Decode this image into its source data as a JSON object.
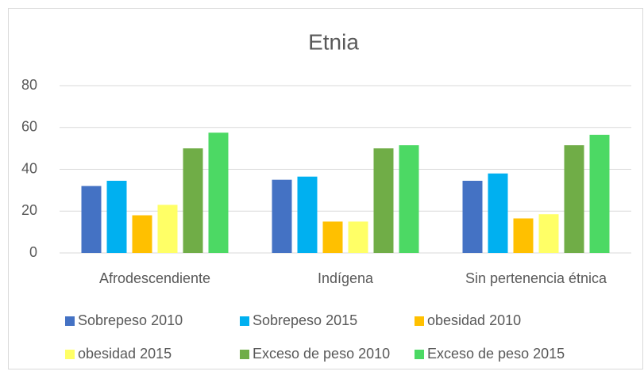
{
  "chart_data": {
    "type": "bar",
    "title": "Etnia",
    "categories": [
      "Afrodescendiente",
      "Indígena",
      "Sin pertenencia étnica"
    ],
    "series": [
      {
        "name": "Sobrepeso 2010",
        "color": "#4472c4",
        "values": [
          32,
          35,
          34.5
        ]
      },
      {
        "name": "Sobrepeso 2015",
        "color": "#00b0f0",
        "values": [
          34.5,
          36.5,
          38
        ]
      },
      {
        "name": "obesidad 2010",
        "color": "#ffc000",
        "values": [
          18,
          15,
          16.5
        ]
      },
      {
        "name": "obesidad 2015",
        "color": "#ffff66",
        "values": [
          23,
          15,
          18.5
        ]
      },
      {
        "name": "Exceso de peso 2010",
        "color": "#70ad47",
        "values": [
          50,
          50,
          51.5
        ]
      },
      {
        "name": "Exceso de peso 2015",
        "color": "#4cd964",
        "values": [
          57.5,
          51.5,
          56.5
        ]
      }
    ],
    "ylim": [
      0,
      80
    ],
    "yticks": [
      0,
      20,
      40,
      60,
      80
    ],
    "grid": true,
    "legend": "bottom"
  }
}
